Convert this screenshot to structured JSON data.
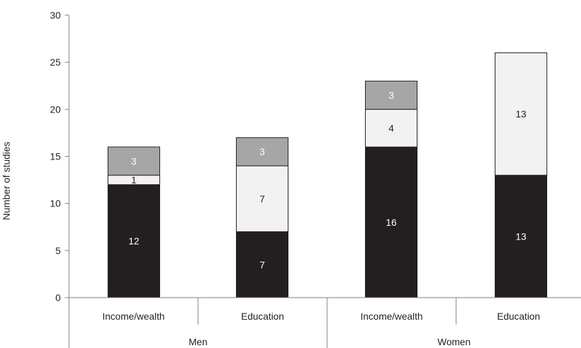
{
  "chart_data": {
    "type": "bar",
    "stacked": true,
    "ylabel": "Number of studies",
    "ylim": [
      0,
      30
    ],
    "yticks": [
      0,
      5,
      10,
      15,
      20,
      25,
      30
    ],
    "groups": [
      {
        "label": "Men",
        "categories": [
          "Income/wealth",
          "Education"
        ]
      },
      {
        "label": "Women",
        "categories": [
          "Income/wealth",
          "Education"
        ]
      }
    ],
    "categories": [
      "Income/wealth",
      "Education",
      "Income/wealth",
      "Education"
    ],
    "series": [
      {
        "color": "#231f20",
        "label_color": "#ffffff",
        "values": [
          12,
          7,
          16,
          13
        ]
      },
      {
        "color": "#f2f2f2",
        "label_color": "#231f20",
        "values": [
          1,
          7,
          4,
          13
        ]
      },
      {
        "color": "#a6a6a6",
        "label_color": "#ffffff",
        "values": [
          3,
          3,
          3,
          0
        ]
      }
    ],
    "grid": false,
    "legend": "none"
  }
}
